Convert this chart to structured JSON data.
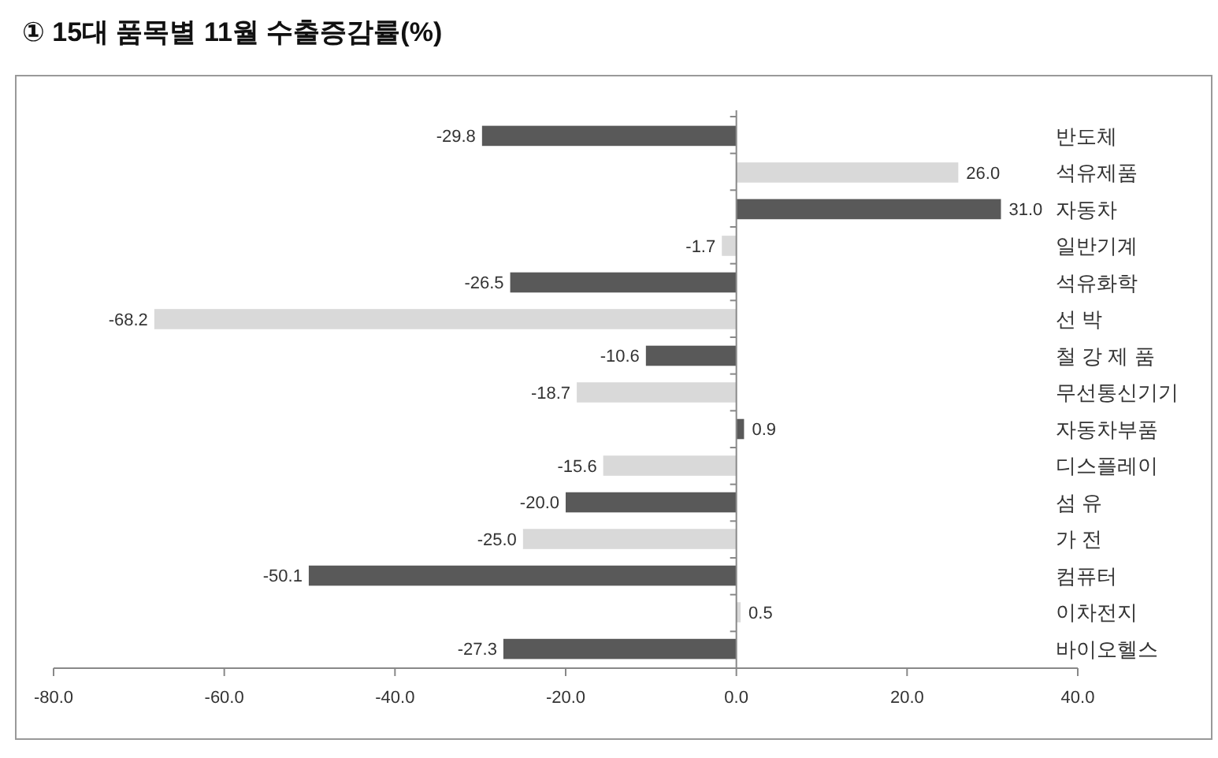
{
  "chart_data": {
    "type": "bar",
    "orientation": "horizontal",
    "title": "① 15대 품목별 11월 수출증감률(%)",
    "categories": [
      "반도체",
      "석유제품",
      "자동차",
      "일반기계",
      "석유화학",
      "선 박",
      "철 강 제 품",
      "무선통신기기",
      "자동차부품",
      "디스플레이",
      "섬 유",
      "가 전",
      "컴퓨터",
      "이차전지",
      "바이오헬스"
    ],
    "values": [
      -29.8,
      26.0,
      31.0,
      -1.7,
      -26.5,
      -68.2,
      -10.6,
      -18.7,
      0.9,
      -15.6,
      -20.0,
      -25.0,
      -50.1,
      0.5,
      -27.3
    ],
    "value_labels": [
      "-29.8",
      "26.0",
      "31.0",
      "-1.7",
      "-26.5",
      "-68.2",
      "-10.6",
      "-18.7",
      "0.9",
      "-15.6",
      "-20.0",
      "-25.0",
      "-50.1",
      "0.5",
      "-27.3"
    ],
    "colors": [
      "#595959",
      "#d9d9d9",
      "#595959",
      "#d9d9d9",
      "#595959",
      "#d9d9d9",
      "#595959",
      "#d9d9d9",
      "#595959",
      "#d9d9d9",
      "#595959",
      "#d9d9d9",
      "#595959",
      "#d9d9d9",
      "#595959"
    ],
    "xlim": [
      -80,
      40
    ],
    "xticks": [
      {
        "value": -80,
        "label": "-80.0"
      },
      {
        "value": -60,
        "label": "-60.0"
      },
      {
        "value": -40,
        "label": "-40.0"
      },
      {
        "value": -20,
        "label": "-20.0"
      },
      {
        "value": 0,
        "label": "0.0"
      },
      {
        "value": 20,
        "label": "20.0"
      },
      {
        "value": 40,
        "label": "40.0"
      }
    ]
  }
}
